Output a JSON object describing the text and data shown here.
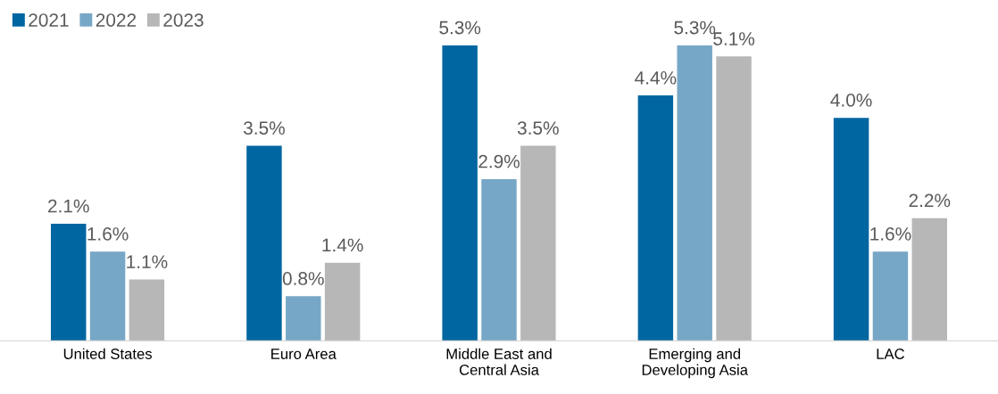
{
  "chart_data": {
    "type": "bar",
    "categories": [
      "United States",
      "Euro Area",
      "Middle East and\nCentral Asia",
      "Emerging and\nDeveloping Asia",
      "LAC"
    ],
    "series": [
      {
        "name": "2021",
        "color": "#0066a1",
        "values": [
          2.1,
          3.5,
          5.3,
          4.4,
          4.0
        ],
        "value_labels": [
          "2.1%",
          "3.5%",
          "5.3%",
          "4.4%",
          "4.0%"
        ]
      },
      {
        "name": "2022",
        "color": "#77a7c6",
        "values": [
          1.6,
          0.8,
          2.9,
          5.3,
          1.6
        ],
        "value_labels": [
          "1.6%",
          "0.8%",
          "2.9%",
          "5.3%",
          "1.6%"
        ]
      },
      {
        "name": "2023",
        "color": "#b7b7b7",
        "values": [
          1.1,
          1.4,
          3.5,
          5.1,
          2.2
        ],
        "value_labels": [
          "1.1%",
          "1.4%",
          "3.5%",
          "5.1%",
          "2.2%"
        ]
      }
    ],
    "legend": "top left",
    "grid": false
  }
}
